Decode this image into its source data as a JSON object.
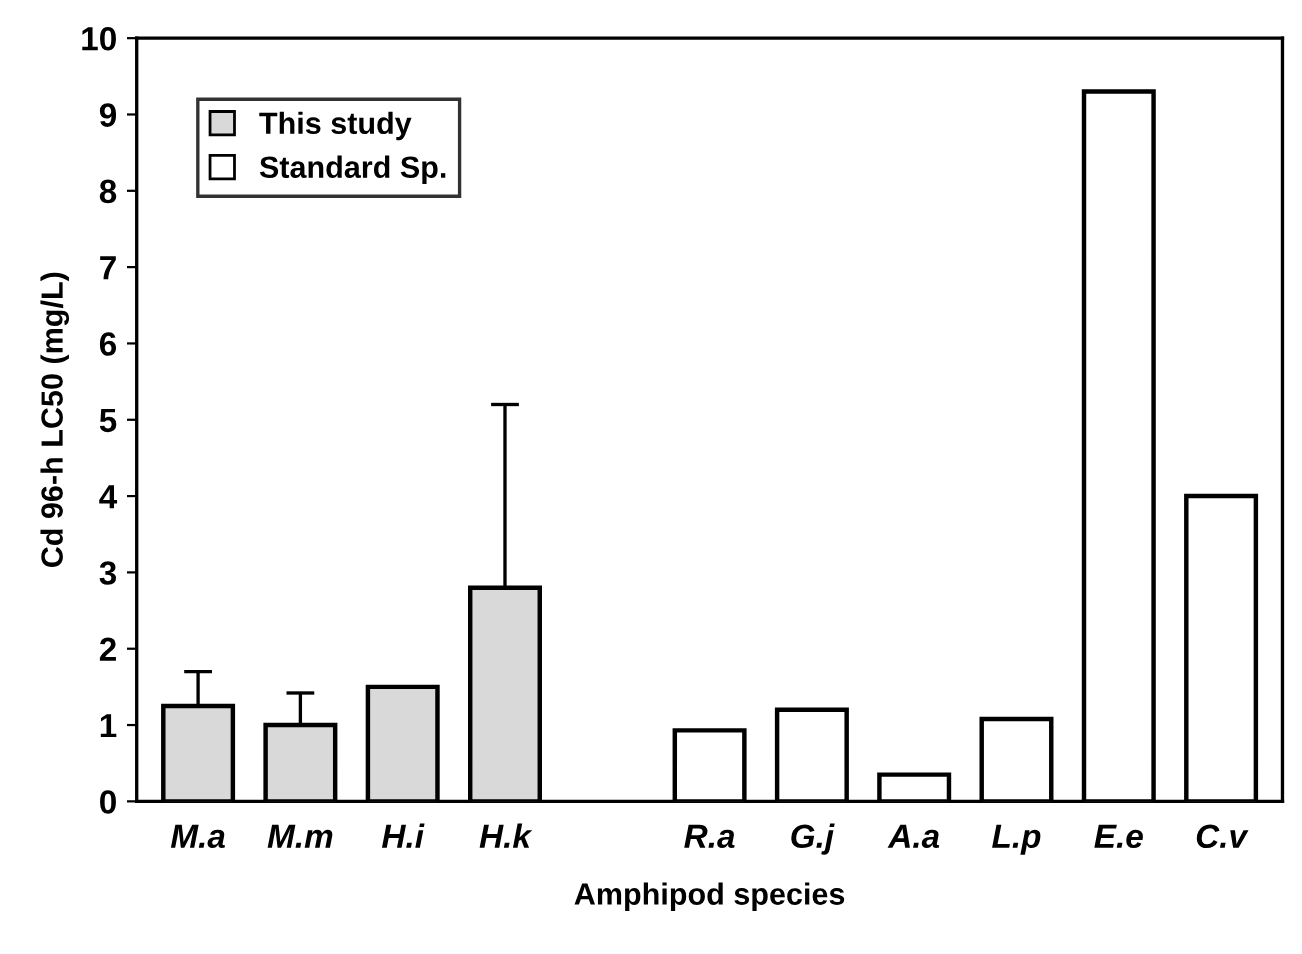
{
  "chart_data": {
    "type": "bar",
    "xlabel": "Amphipod species",
    "ylabel": "Cd 96-h LC50 (mg/L)",
    "categories": [
      "M.a",
      "M.m",
      "H.i",
      "H.k",
      null,
      "R.a",
      "G.j",
      "A.a",
      "L.p",
      "E.e",
      "C.v"
    ],
    "series": [
      {
        "name": "This study",
        "color": "#d9d9d9",
        "values": [
          1.25,
          1.0,
          1.5,
          2.8,
          null,
          null,
          null,
          null,
          null,
          null,
          null
        ],
        "errors": [
          0.45,
          0.42,
          null,
          2.4,
          null,
          null,
          null,
          null,
          null,
          null,
          null
        ]
      },
      {
        "name": "Standard Sp.",
        "color": "#ffffff",
        "values": [
          null,
          null,
          null,
          null,
          null,
          0.93,
          1.2,
          0.35,
          1.08,
          9.3,
          4.0
        ]
      }
    ],
    "ylim": [
      0,
      10
    ],
    "yticks": [
      0,
      1,
      2,
      3,
      4,
      5,
      6,
      7,
      8,
      9,
      10
    ],
    "grid": false,
    "legend": "top left"
  }
}
